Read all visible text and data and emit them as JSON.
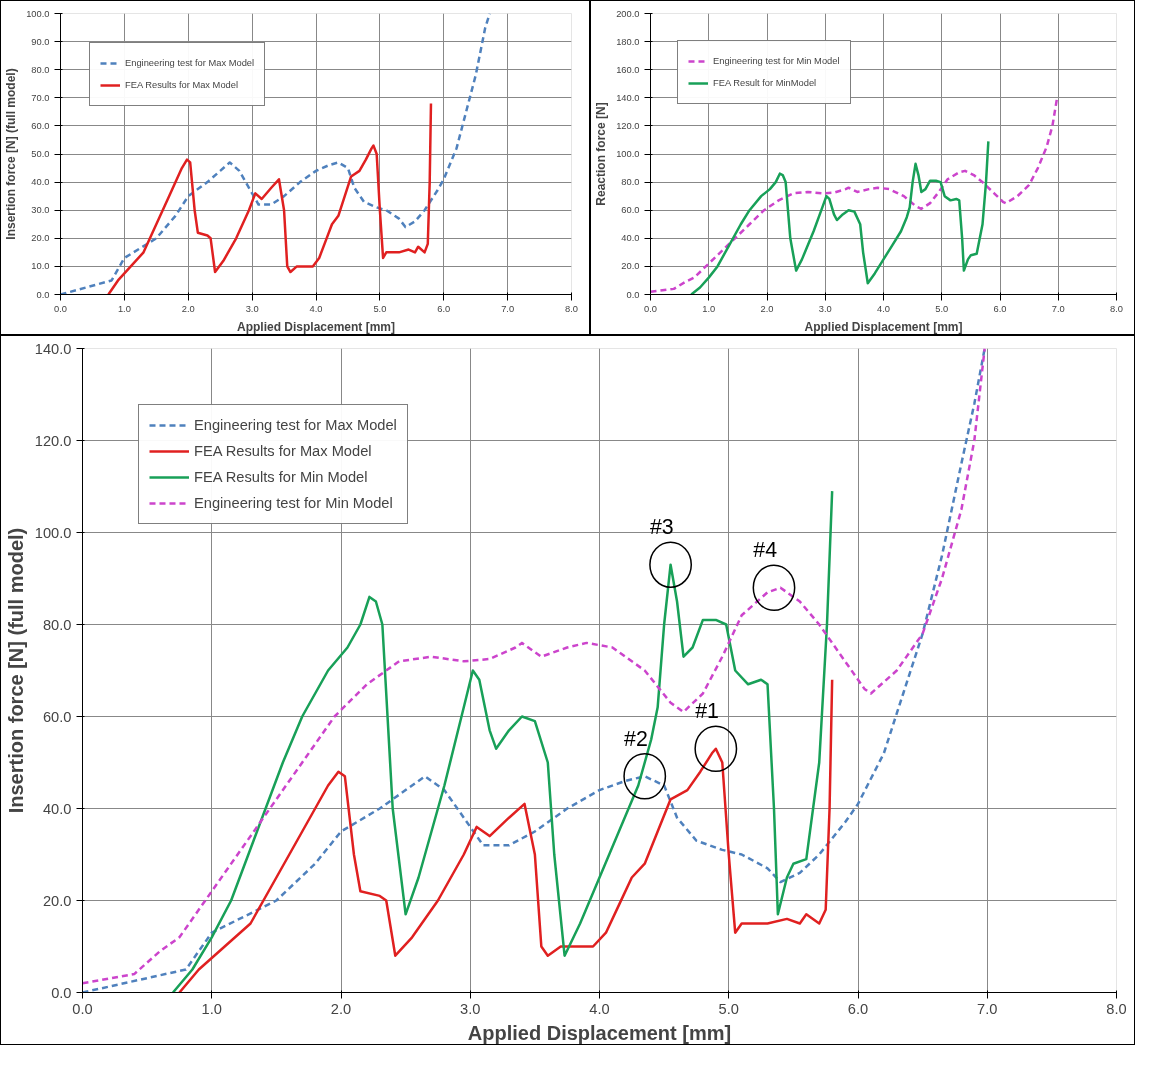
{
  "chart_data": [
    {
      "type": "line",
      "xlabel": "Applied Displacement [mm]",
      "ylabel": "Insertion force [N] (full model)",
      "grid": true,
      "legend": "top left",
      "xlim": [
        0,
        8
      ],
      "xticks": [
        {
          "value": 0,
          "label": "0.0"
        },
        {
          "value": 1,
          "label": "1.0"
        },
        {
          "value": 2,
          "label": "2.0"
        },
        {
          "value": 3,
          "label": "3.0"
        },
        {
          "value": 4,
          "label": "4.0"
        },
        {
          "value": 5,
          "label": "5.0"
        },
        {
          "value": 6,
          "label": "6.0"
        },
        {
          "value": 7,
          "label": "7.0"
        },
        {
          "value": 8,
          "label": "8.0"
        }
      ],
      "ylim": [
        0,
        100
      ],
      "yticks": [
        {
          "value": 0,
          "label": "0.0"
        },
        {
          "value": 10,
          "label": "10.0"
        },
        {
          "value": 20,
          "label": "20.0"
        },
        {
          "value": 30,
          "label": "30.0"
        },
        {
          "value": 40,
          "label": "40.0"
        },
        {
          "value": 50,
          "label": "50.0"
        },
        {
          "value": 60,
          "label": "60.0"
        },
        {
          "value": 70,
          "label": "70.0"
        },
        {
          "value": 80,
          "label": "80.0"
        },
        {
          "value": 90,
          "label": "90.0"
        },
        {
          "value": 100,
          "label": "100.0"
        }
      ],
      "series": [
        {
          "name": "Engineering test for Max Model",
          "color": "#4f81bd",
          "line_style": "dashed",
          "x": [
            0,
            0.8,
            1.0,
            1.5,
            1.8,
            2.0,
            2.3,
            2.5,
            2.65,
            2.8,
            3.0,
            3.1,
            3.3,
            3.5,
            3.75,
            4.0,
            4.2,
            4.35,
            4.5,
            4.6,
            4.75,
            4.95,
            5.1,
            5.3,
            5.4,
            5.55,
            5.7,
            5.9,
            6.0,
            6.2,
            6.35,
            6.5,
            6.65,
            6.72
          ],
          "values": [
            0,
            5,
            13,
            20,
            28,
            35,
            40,
            44,
            47,
            44,
            36,
            32,
            32,
            35,
            40,
            44,
            46,
            47,
            45,
            38,
            33,
            31,
            30,
            27,
            24,
            26,
            30,
            37,
            41,
            52,
            65,
            78,
            95,
            100
          ]
        },
        {
          "name": "FEA Results for Max Model",
          "color": "#e02020",
          "line_style": "solid",
          "x": [
            0.75,
            0.9,
            1.1,
            1.3,
            1.5,
            1.7,
            1.9,
            1.98,
            2.03,
            2.1,
            2.15,
            2.3,
            2.35,
            2.42,
            2.55,
            2.75,
            2.95,
            3.05,
            3.15,
            3.3,
            3.42,
            3.5,
            3.55,
            3.6,
            3.7,
            3.95,
            4.05,
            4.15,
            4.25,
            4.35,
            4.45,
            4.55,
            4.68,
            4.78,
            4.87,
            4.9,
            4.95,
            5.0,
            5.05,
            5.1,
            5.3,
            5.45,
            5.55,
            5.6,
            5.7,
            5.75,
            5.78,
            5.8
          ],
          "values": [
            0,
            5,
            10,
            15,
            25,
            35,
            45,
            48,
            47,
            30,
            22,
            21,
            20,
            8,
            12,
            20,
            30,
            36,
            34,
            38,
            41,
            30,
            10,
            8,
            10,
            10,
            13,
            19,
            25,
            28,
            35,
            42,
            44,
            48,
            52,
            53,
            50,
            30,
            13,
            15,
            15,
            16,
            15,
            17,
            15,
            18,
            40,
            68
          ]
        }
      ]
    },
    {
      "type": "line",
      "xlabel": "Applied Displacement [mm]",
      "ylabel": "Reaction force [N]",
      "grid": true,
      "legend": "top left",
      "xlim": [
        0,
        8
      ],
      "xticks": [
        {
          "value": 0,
          "label": "0.0"
        },
        {
          "value": 1,
          "label": "1.0"
        },
        {
          "value": 2,
          "label": "2.0"
        },
        {
          "value": 3,
          "label": "3.0"
        },
        {
          "value": 4,
          "label": "4.0"
        },
        {
          "value": 5,
          "label": "5.0"
        },
        {
          "value": 6,
          "label": "6.0"
        },
        {
          "value": 7,
          "label": "7.0"
        },
        {
          "value": 8,
          "label": "8.0"
        }
      ],
      "ylim": [
        0,
        200
      ],
      "yticks": [
        {
          "value": 0,
          "label": "0.0"
        },
        {
          "value": 20,
          "label": "20.0"
        },
        {
          "value": 40,
          "label": "40.0"
        },
        {
          "value": 60,
          "label": "60.0"
        },
        {
          "value": 80,
          "label": "80.0"
        },
        {
          "value": 100,
          "label": "100.0"
        },
        {
          "value": 120,
          "label": "120.0"
        },
        {
          "value": 140,
          "label": "140.0"
        },
        {
          "value": 160,
          "label": "160.0"
        },
        {
          "value": 180,
          "label": "180.0"
        },
        {
          "value": 200,
          "label": "200.0"
        }
      ],
      "series": [
        {
          "name": "Engineering test for Min Model",
          "color": "#cc44cc",
          "line_style": "dashed",
          "x": [
            0,
            0.4,
            0.6,
            0.75,
            0.95,
            1.2,
            1.45,
            1.7,
            1.95,
            2.2,
            2.45,
            2.7,
            2.95,
            3.15,
            3.35,
            3.4,
            3.55,
            3.75,
            3.9,
            4.1,
            4.35,
            4.55,
            4.65,
            4.8,
            4.95,
            5.1,
            5.3,
            5.4,
            5.55,
            5.7,
            5.9,
            6.05,
            6.1,
            6.3,
            6.5,
            6.65,
            6.8,
            6.9,
            6.98
          ],
          "values": [
            2,
            4,
            9,
            12,
            20,
            30,
            40,
            50,
            60,
            67,
            72,
            73,
            72,
            72.5,
            75,
            76,
            73,
            75,
            76,
            75,
            70,
            63,
            61,
            65,
            73,
            82,
            87,
            88,
            85,
            80,
            72,
            66,
            65,
            70,
            78,
            90,
            105,
            120,
            140
          ]
        },
        {
          "name": "FEA Result for MinModel",
          "color": "#18a058",
          "line_style": "solid",
          "x": [
            0.7,
            0.85,
            1.0,
            1.15,
            1.35,
            1.55,
            1.7,
            1.9,
            2.05,
            2.15,
            2.22,
            2.27,
            2.32,
            2.4,
            2.5,
            2.6,
            2.8,
            2.95,
            3.02,
            3.07,
            3.15,
            3.2,
            3.3,
            3.4,
            3.5,
            3.6,
            3.65,
            3.73,
            3.85,
            4.0,
            4.15,
            4.3,
            4.4,
            4.45,
            4.5,
            4.55,
            4.6,
            4.65,
            4.72,
            4.8,
            4.9,
            4.98,
            5.05,
            5.15,
            5.25,
            5.3,
            5.35,
            5.38,
            5.45,
            5.5,
            5.6,
            5.7,
            5.76,
            5.8
          ],
          "values": [
            0,
            5,
            12,
            20,
            35,
            50,
            60,
            70,
            75,
            80,
            86,
            85,
            80,
            40,
            17,
            25,
            45,
            62,
            70,
            68,
            57,
            53,
            57,
            60,
            59,
            50,
            30,
            8,
            15,
            25,
            35,
            45,
            55,
            62,
            80,
            93,
            85,
            73,
            75,
            81,
            81,
            80,
            70,
            67,
            68,
            67,
            40,
            17,
            25,
            28,
            29,
            50,
            80,
            109
          ]
        }
      ]
    },
    {
      "type": "line",
      "xlabel": "Applied Displacement [mm]",
      "ylabel": "Insertion force [N] (full model)",
      "grid": true,
      "legend": "top left",
      "xlim": [
        0,
        8
      ],
      "xticks": [
        {
          "value": 0,
          "label": "0.0"
        },
        {
          "value": 1,
          "label": "1.0"
        },
        {
          "value": 2,
          "label": "2.0"
        },
        {
          "value": 3,
          "label": "3.0"
        },
        {
          "value": 4,
          "label": "4.0"
        },
        {
          "value": 5,
          "label": "5.0"
        },
        {
          "value": 6,
          "label": "6.0"
        },
        {
          "value": 7,
          "label": "7.0"
        },
        {
          "value": 8,
          "label": "8.0"
        }
      ],
      "ylim": [
        0,
        140
      ],
      "yticks": [
        {
          "value": 0,
          "label": "0.0"
        },
        {
          "value": 20,
          "label": "20.0"
        },
        {
          "value": 40,
          "label": "40.0"
        },
        {
          "value": 60,
          "label": "60.0"
        },
        {
          "value": 80,
          "label": "80.0"
        },
        {
          "value": 100,
          "label": "100.0"
        },
        {
          "value": 120,
          "label": "120.0"
        },
        {
          "value": 140,
          "label": "140.0"
        }
      ],
      "annotations": [
        {
          "text": "#1",
          "x": 4.9,
          "y": 53
        },
        {
          "text": "#2",
          "x": 4.35,
          "y": 47
        },
        {
          "text": "#3",
          "x": 4.55,
          "y": 93
        },
        {
          "text": "#4",
          "x": 5.35,
          "y": 88
        }
      ],
      "series": [
        {
          "name": "Engineering test for Max Model",
          "color": "#4f81bd",
          "line_style": "dashed",
          "x": [
            0,
            0.8,
            1.0,
            1.5,
            1.8,
            2.0,
            2.3,
            2.5,
            2.65,
            2.8,
            3.0,
            3.1,
            3.3,
            3.5,
            3.75,
            4.0,
            4.2,
            4.35,
            4.5,
            4.6,
            4.75,
            4.95,
            5.1,
            5.3,
            5.4,
            5.55,
            5.7,
            5.9,
            6.0,
            6.2,
            6.35,
            6.5,
            6.65,
            6.8,
            6.9,
            6.98
          ],
          "values": [
            0,
            5,
            13,
            20,
            28,
            35,
            40,
            44,
            47,
            44,
            36,
            32,
            32,
            35,
            40,
            44,
            46,
            47,
            45,
            38,
            33,
            31,
            30,
            27,
            24,
            26,
            30,
            37,
            41,
            52,
            65,
            78,
            95,
            115,
            128,
            140
          ]
        },
        {
          "name": "FEA Results for Max Model",
          "color": "#e02020",
          "line_style": "solid",
          "x": [
            0.75,
            0.9,
            1.1,
            1.3,
            1.5,
            1.7,
            1.9,
            1.98,
            2.03,
            2.1,
            2.15,
            2.3,
            2.35,
            2.42,
            2.55,
            2.75,
            2.95,
            3.05,
            3.15,
            3.3,
            3.42,
            3.5,
            3.55,
            3.6,
            3.7,
            3.95,
            4.05,
            4.15,
            4.25,
            4.35,
            4.45,
            4.55,
            4.68,
            4.78,
            4.87,
            4.9,
            4.95,
            5.0,
            5.05,
            5.1,
            5.3,
            5.45,
            5.55,
            5.6,
            5.7,
            5.75,
            5.78,
            5.8
          ],
          "values": [
            0,
            5,
            10,
            15,
            25,
            35,
            45,
            48,
            47,
            30,
            22,
            21,
            20,
            8,
            12,
            20,
            30,
            36,
            34,
            38,
            41,
            30,
            10,
            8,
            10,
            10,
            13,
            19,
            25,
            28,
            35,
            42,
            44,
            48,
            52,
            53,
            50,
            30,
            13,
            15,
            15,
            16,
            15,
            17,
            15,
            18,
            40,
            68
          ]
        },
        {
          "name": "FEA Results for Min Model",
          "color": "#18a058",
          "line_style": "solid",
          "x": [
            0.7,
            0.85,
            1.0,
            1.15,
            1.35,
            1.55,
            1.7,
            1.9,
            2.05,
            2.15,
            2.22,
            2.27,
            2.32,
            2.4,
            2.5,
            2.6,
            2.8,
            2.95,
            3.02,
            3.07,
            3.15,
            3.2,
            3.3,
            3.4,
            3.5,
            3.6,
            3.65,
            3.73,
            3.85,
            4.0,
            4.15,
            4.3,
            4.4,
            4.45,
            4.5,
            4.55,
            4.6,
            4.65,
            4.72,
            4.8,
            4.9,
            4.98,
            5.05,
            5.15,
            5.25,
            5.3,
            5.35,
            5.38,
            5.45,
            5.5,
            5.6,
            5.7,
            5.76,
            5.8
          ],
          "values": [
            0,
            5,
            12,
            20,
            35,
            50,
            60,
            70,
            75,
            80,
            86,
            85,
            80,
            40,
            17,
            25,
            45,
            62,
            70,
            68,
            57,
            53,
            57,
            60,
            59,
            50,
            30,
            8,
            15,
            25,
            35,
            45,
            55,
            62,
            80,
            93,
            85,
            73,
            75,
            81,
            81,
            80,
            70,
            67,
            68,
            67,
            40,
            17,
            25,
            28,
            29,
            50,
            80,
            109
          ]
        },
        {
          "name": "Engineering test for Min Model",
          "color": "#cc44cc",
          "line_style": "dashed",
          "x": [
            0,
            0.4,
            0.6,
            0.75,
            0.95,
            1.2,
            1.45,
            1.7,
            1.95,
            2.2,
            2.45,
            2.7,
            2.95,
            3.15,
            3.35,
            3.4,
            3.55,
            3.75,
            3.9,
            4.1,
            4.35,
            4.55,
            4.65,
            4.8,
            4.95,
            5.1,
            5.3,
            5.4,
            5.55,
            5.7,
            5.9,
            6.05,
            6.1,
            6.3,
            6.5,
            6.65,
            6.8,
            6.9,
            6.98
          ],
          "values": [
            2,
            4,
            9,
            12,
            20,
            30,
            40,
            50,
            60,
            67,
            72,
            73,
            72,
            72.5,
            75,
            76,
            73,
            75,
            76,
            75,
            70,
            63,
            61,
            65,
            73,
            82,
            87,
            88,
            85,
            80,
            72,
            66,
            65,
            70,
            78,
            90,
            105,
            120,
            140
          ]
        }
      ]
    }
  ]
}
